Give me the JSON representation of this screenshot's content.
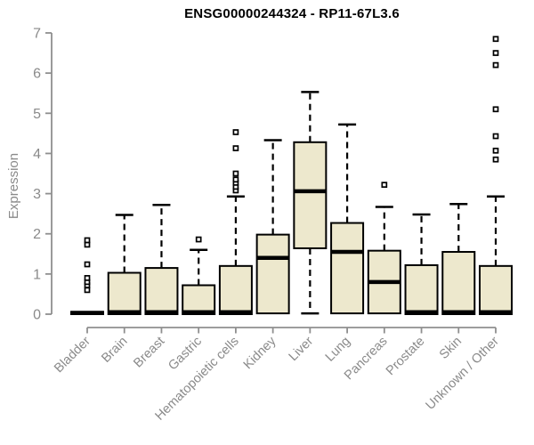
{
  "chart_data": {
    "type": "box",
    "title": "ENSG00000244324 - RP11-67L3.6",
    "xlabel": "",
    "ylabel": "Expression",
    "ylim": [
      0,
      7
    ],
    "yticks": [
      0,
      1,
      2,
      3,
      4,
      5,
      6,
      7
    ],
    "grid": false,
    "legend": "none",
    "categories": [
      "Bladder",
      "Brain",
      "Breast",
      "Gastric",
      "Hematopoietic cells",
      "Kidney",
      "Liver",
      "Lung",
      "Pancreas",
      "Prostate",
      "Skin",
      "Unknown / Other"
    ],
    "boxes": [
      {
        "label": "Bladder",
        "q1": 0,
        "median": 0.03,
        "q3": 0.06,
        "whisker_low": 0,
        "whisker_high": 0.06,
        "outliers": [
          0.6,
          0.72,
          0.8,
          0.9,
          1.24,
          1.73,
          1.84
        ]
      },
      {
        "label": "Brain",
        "q1": 0,
        "median": 0.05,
        "q3": 1.03,
        "whisker_low": 0,
        "whisker_high": 2.47,
        "outliers": []
      },
      {
        "label": "Breast",
        "q1": 0,
        "median": 0.05,
        "q3": 1.15,
        "whisker_low": 0,
        "whisker_high": 2.72,
        "outliers": []
      },
      {
        "label": "Gastric",
        "q1": 0,
        "median": 0.05,
        "q3": 0.72,
        "whisker_low": 0,
        "whisker_high": 1.6,
        "outliers": [
          1.86
        ]
      },
      {
        "label": "Hematopoietic cells",
        "q1": 0,
        "median": 0.05,
        "q3": 1.2,
        "whisker_low": 0,
        "whisker_high": 2.93,
        "outliers": [
          3.08,
          3.17,
          3.27,
          3.35,
          3.5,
          4.13,
          4.53
        ]
      },
      {
        "label": "Kidney",
        "q1": 0.02,
        "median": 1.4,
        "q3": 1.98,
        "whisker_low": 0.02,
        "whisker_high": 4.33,
        "outliers": []
      },
      {
        "label": "Liver",
        "q1": 1.64,
        "median": 3.06,
        "q3": 4.28,
        "whisker_low": 0.02,
        "whisker_high": 5.53,
        "outliers": []
      },
      {
        "label": "Lung",
        "q1": 0.02,
        "median": 1.55,
        "q3": 2.27,
        "whisker_low": 0.02,
        "whisker_high": 4.72,
        "outliers": []
      },
      {
        "label": "Pancreas",
        "q1": 0.02,
        "median": 0.8,
        "q3": 1.58,
        "whisker_low": 0.02,
        "whisker_high": 2.67,
        "outliers": [
          3.22
        ]
      },
      {
        "label": "Prostate",
        "q1": 0,
        "median": 0.05,
        "q3": 1.22,
        "whisker_low": 0,
        "whisker_high": 2.48,
        "outliers": []
      },
      {
        "label": "Skin",
        "q1": 0,
        "median": 0.05,
        "q3": 1.55,
        "whisker_low": 0,
        "whisker_high": 2.74,
        "outliers": []
      },
      {
        "label": "Unknown / Other",
        "q1": 0,
        "median": 0.05,
        "q3": 1.2,
        "whisker_low": 0,
        "whisker_high": 2.93,
        "outliers": [
          3.85,
          4.07,
          4.43,
          5.1,
          6.2,
          6.5,
          6.85
        ]
      }
    ],
    "colors": {
      "box_fill": "#EDE8CD",
      "box_border": "#000000",
      "median": "#000000",
      "whisker": "#000000",
      "outlier_fill": "#FFFFFF",
      "axis": "#8F8F8F",
      "label": "#8A8A8A",
      "title": "#000000",
      "background": "#FFFFFF"
    }
  }
}
